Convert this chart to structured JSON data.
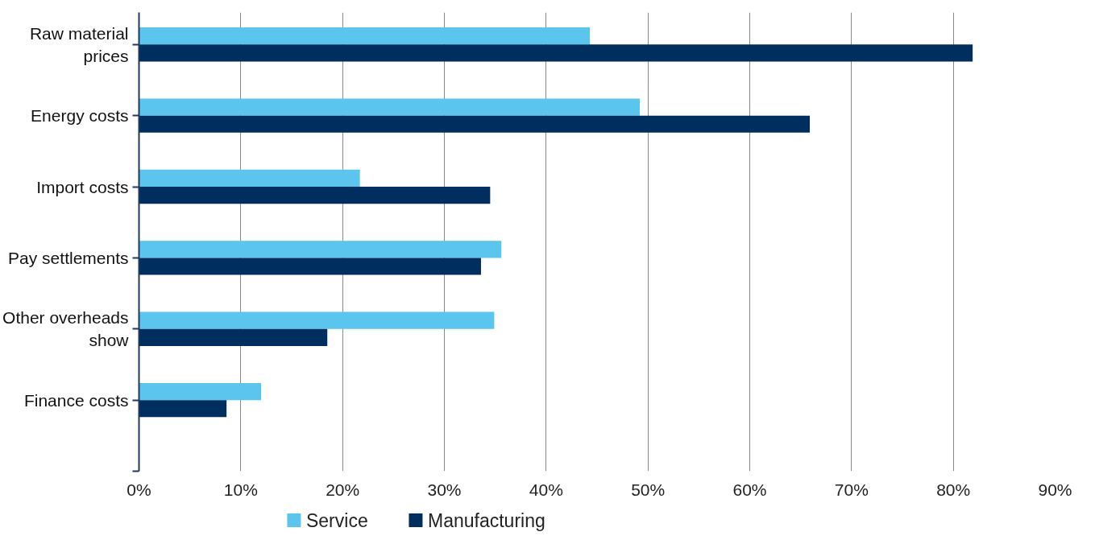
{
  "chart_data": {
    "type": "bar",
    "orientation": "horizontal",
    "categories": [
      "Raw material prices",
      "Energy costs",
      "Import costs",
      "Pay settlements",
      "Other overheads show",
      "Finance costs"
    ],
    "series": [
      {
        "name": "Service",
        "color": "#5bc5ee",
        "values": [
          44.3,
          49.2,
          21.7,
          35.6,
          34.9,
          12.0
        ]
      },
      {
        "name": "Manufacturing",
        "color": "#002f5f",
        "values": [
          81.9,
          65.9,
          34.5,
          33.6,
          18.5,
          8.6
        ]
      }
    ],
    "xlim": [
      0,
      90
    ],
    "xticks": [
      {
        "value": 0,
        "label": "0%"
      },
      {
        "value": 10,
        "label": "10%"
      },
      {
        "value": 20,
        "label": "20%"
      },
      {
        "value": 30,
        "label": "30%"
      },
      {
        "value": 40,
        "label": "40%"
      },
      {
        "value": 50,
        "label": "50%"
      },
      {
        "value": 60,
        "label": "60%"
      },
      {
        "value": 70,
        "label": "70%"
      },
      {
        "value": 80,
        "label": "80%"
      },
      {
        "value": 90,
        "label": "90%"
      }
    ],
    "grid": "x",
    "legend": "bottom left"
  }
}
